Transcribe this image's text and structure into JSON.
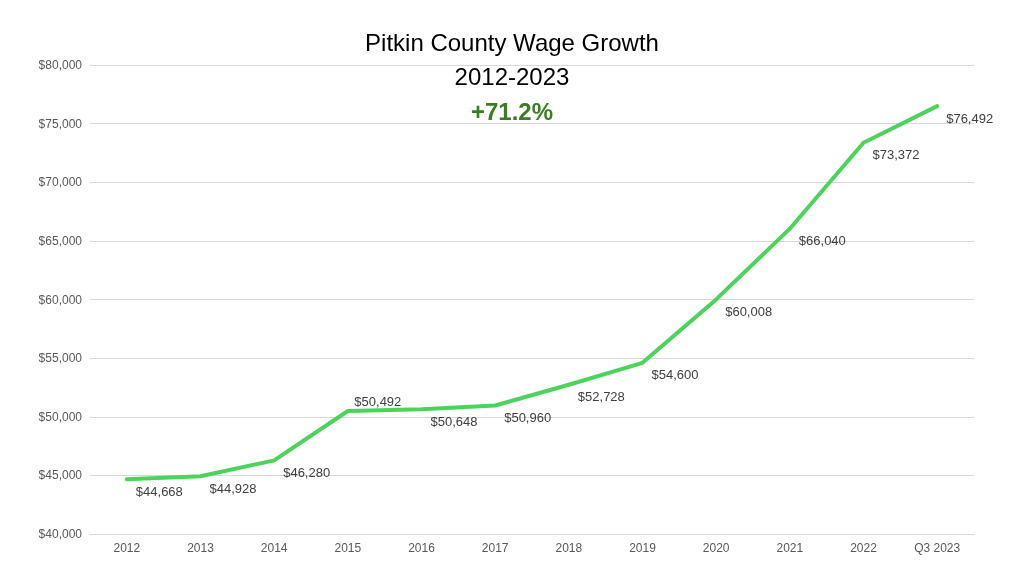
{
  "chart_data": {
    "type": "line",
    "title": "Pitkin County Wage Growth\n2012-2023",
    "subtitle": "+71.2%",
    "categories": [
      "2012",
      "2013",
      "2014",
      "2015",
      "2016",
      "2017",
      "2018",
      "2019",
      "2020",
      "2021",
      "2022",
      "Q3 2023"
    ],
    "series": [
      {
        "color": "#4cd45a",
        "values": [
          44668,
          44928,
          46280,
          50492,
          50648,
          50960,
          52728,
          54600,
          60008,
          66040,
          73372,
          76492
        ],
        "value_labels": [
          "$44,668",
          "$44,928",
          "$46,280",
          "$50,492",
          "$50,648",
          "$50,960",
          "$52,728",
          "$54,600",
          "$60,008",
          "$66,040",
          "$73,372",
          "$76,492"
        ]
      }
    ],
    "ylim": [
      40000,
      80000
    ],
    "yticks": [
      {
        "value": 40000,
        "label": "$40,000"
      },
      {
        "value": 45000,
        "label": "$45,000"
      },
      {
        "value": 50000,
        "label": "$50,000"
      },
      {
        "value": 55000,
        "label": "$55,000"
      },
      {
        "value": 60000,
        "label": "$60,000"
      },
      {
        "value": 65000,
        "label": "$65,000"
      },
      {
        "value": 70000,
        "label": "$70,000"
      },
      {
        "value": 75000,
        "label": "$75,000"
      },
      {
        "value": 80000,
        "label": "$80,000"
      }
    ],
    "grid": "y",
    "marker": "none",
    "line_style": "solid"
  }
}
